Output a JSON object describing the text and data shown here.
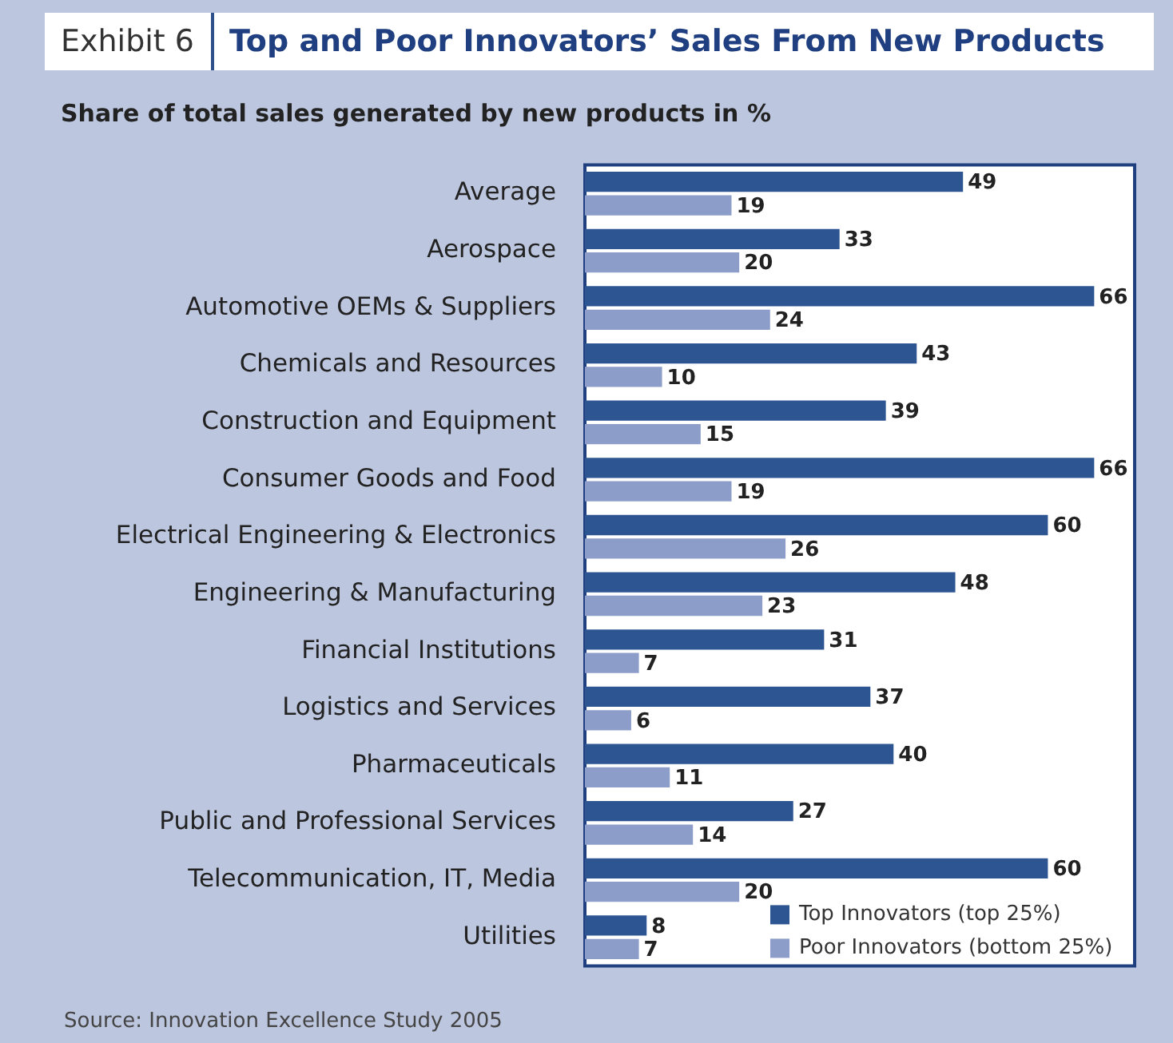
{
  "chart_data": {
    "type": "bar",
    "orientation": "horizontal",
    "title": "Top and Poor Innovators’ Sales From New Products",
    "subtitle": "Share of total sales generated by new products in %",
    "annotations": [
      "Exhibit 6",
      "Source: Innovation Excellence Study 2005"
    ],
    "categories": [
      "Average",
      "Aerospace",
      "Automotive OEMs & Suppliers",
      "Chemicals and Resources",
      "Construction and Equipment",
      "Consumer Goods and Food",
      "Electrical Engineering & Electronics",
      "Engineering & Manufacturing",
      "Financial Institutions",
      "Logistics and Services",
      "Pharmaceuticals",
      "Public and Professional Services",
      "Telecommunication, IT, Media",
      "Utilities"
    ],
    "series": [
      {
        "name": "Top Innovators (top 25%)",
        "color": "#2d5592",
        "values": [
          49,
          33,
          66,
          43,
          39,
          66,
          60,
          48,
          31,
          37,
          40,
          27,
          60,
          8
        ]
      },
      {
        "name": "Poor Innovators (bottom 25%)",
        "color": "#8c9dc9",
        "values": [
          19,
          20,
          24,
          10,
          15,
          19,
          26,
          23,
          7,
          6,
          11,
          14,
          20,
          7
        ]
      }
    ],
    "tick_labels": "y",
    "legend": "bottom right",
    "data_labels": true
  }
}
